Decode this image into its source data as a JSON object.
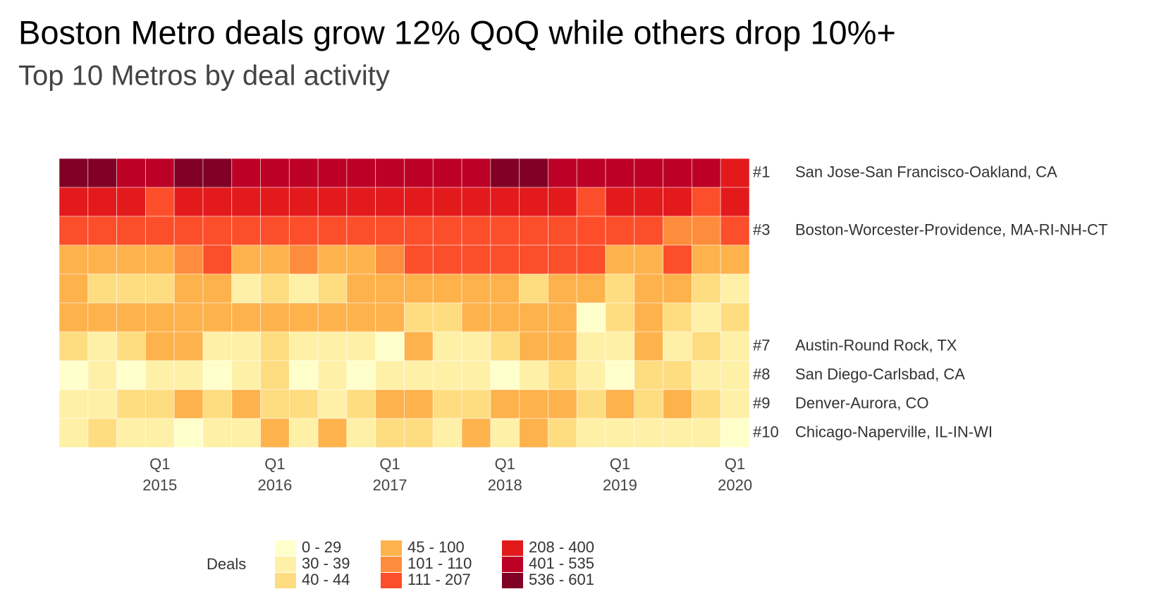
{
  "chart_data": {
    "type": "heatmap",
    "title": "Boston Metro deals grow 12% QoQ while others drop 10%+",
    "subtitle": "Top 10 Metros by deal activity",
    "categories": [
      null,
      null,
      null,
      "Q1 2015",
      null,
      null,
      null,
      "Q1 2016",
      null,
      null,
      null,
      "Q1 2017",
      null,
      null,
      null,
      "Q1 2018",
      null,
      null,
      null,
      "Q1 2019",
      null,
      null,
      null,
      "Q1 2020"
    ],
    "ranks": [
      "#1",
      null,
      "#3",
      null,
      null,
      null,
      "#7",
      "#8",
      "#9",
      "#10"
    ],
    "rows": [
      "San Jose-San Francisco-Oakland, CA",
      null,
      "Boston-Worcester-Providence, MA-RI-NH-CT",
      null,
      null,
      null,
      "Austin-Round Rock, TX",
      "San Diego-Carlsbad, CA",
      "Denver-Aurora, CO",
      "Chicago-Naperville, IL-IN-WI"
    ],
    "values": [
      [
        560,
        560,
        470,
        470,
        560,
        560,
        470,
        470,
        470,
        470,
        470,
        470,
        470,
        470,
        470,
        560,
        560,
        470,
        470,
        470,
        470,
        470,
        470,
        300
      ],
      [
        300,
        300,
        300,
        160,
        300,
        300,
        300,
        300,
        300,
        300,
        300,
        300,
        300,
        300,
        300,
        300,
        300,
        300,
        160,
        300,
        300,
        300,
        160,
        300
      ],
      [
        160,
        160,
        160,
        160,
        160,
        160,
        160,
        160,
        160,
        160,
        160,
        160,
        160,
        160,
        160,
        160,
        160,
        160,
        160,
        160,
        160,
        105,
        105,
        160
      ],
      [
        80,
        80,
        80,
        80,
        105,
        160,
        80,
        80,
        105,
        80,
        80,
        105,
        160,
        160,
        160,
        160,
        160,
        160,
        160,
        80,
        80,
        160,
        80,
        80
      ],
      [
        80,
        42,
        42,
        42,
        80,
        80,
        35,
        42,
        35,
        42,
        80,
        80,
        80,
        80,
        80,
        80,
        42,
        80,
        80,
        42,
        80,
        80,
        42,
        35
      ],
      [
        80,
        80,
        80,
        80,
        80,
        80,
        80,
        80,
        80,
        80,
        80,
        80,
        42,
        42,
        80,
        80,
        80,
        80,
        25,
        42,
        80,
        42,
        35,
        42
      ],
      [
        42,
        35,
        42,
        80,
        80,
        35,
        35,
        42,
        35,
        35,
        35,
        25,
        80,
        35,
        35,
        42,
        80,
        80,
        35,
        35,
        80,
        35,
        42,
        35
      ],
      [
        25,
        35,
        25,
        35,
        35,
        25,
        35,
        42,
        25,
        35,
        25,
        35,
        35,
        35,
        35,
        25,
        35,
        42,
        35,
        25,
        42,
        42,
        35,
        35
      ],
      [
        35,
        35,
        42,
        42,
        80,
        42,
        80,
        42,
        42,
        35,
        42,
        80,
        80,
        42,
        42,
        80,
        80,
        80,
        42,
        80,
        42,
        80,
        42,
        35
      ],
      [
        35,
        42,
        35,
        35,
        25,
        35,
        35,
        80,
        35,
        80,
        35,
        42,
        42,
        35,
        80,
        35,
        80,
        42,
        35,
        35,
        35,
        35,
        35,
        25
      ]
    ],
    "legend_title": "Deals",
    "bins": [
      {
        "min": 0,
        "max": 29,
        "label": "0 - 29",
        "color": "#ffffcc"
      },
      {
        "min": 30,
        "max": 39,
        "label": "30 - 39",
        "color": "#fff0a8"
      },
      {
        "min": 40,
        "max": 44,
        "label": "40 - 44",
        "color": "#fedc80"
      },
      {
        "min": 45,
        "max": 100,
        "label": "45 - 100",
        "color": "#feb24c"
      },
      {
        "min": 101,
        "max": 110,
        "label": "101 - 110",
        "color": "#fd8d3c"
      },
      {
        "min": 111,
        "max": 207,
        "label": "111 - 207",
        "color": "#fc4e2a"
      },
      {
        "min": 208,
        "max": 400,
        "label": "208 - 400",
        "color": "#e31a1c"
      },
      {
        "min": 401,
        "max": 535,
        "label": "401 - 535",
        "color": "#bd0026"
      },
      {
        "min": 536,
        "max": 601,
        "label": "536 - 601",
        "color": "#800026"
      }
    ]
  }
}
